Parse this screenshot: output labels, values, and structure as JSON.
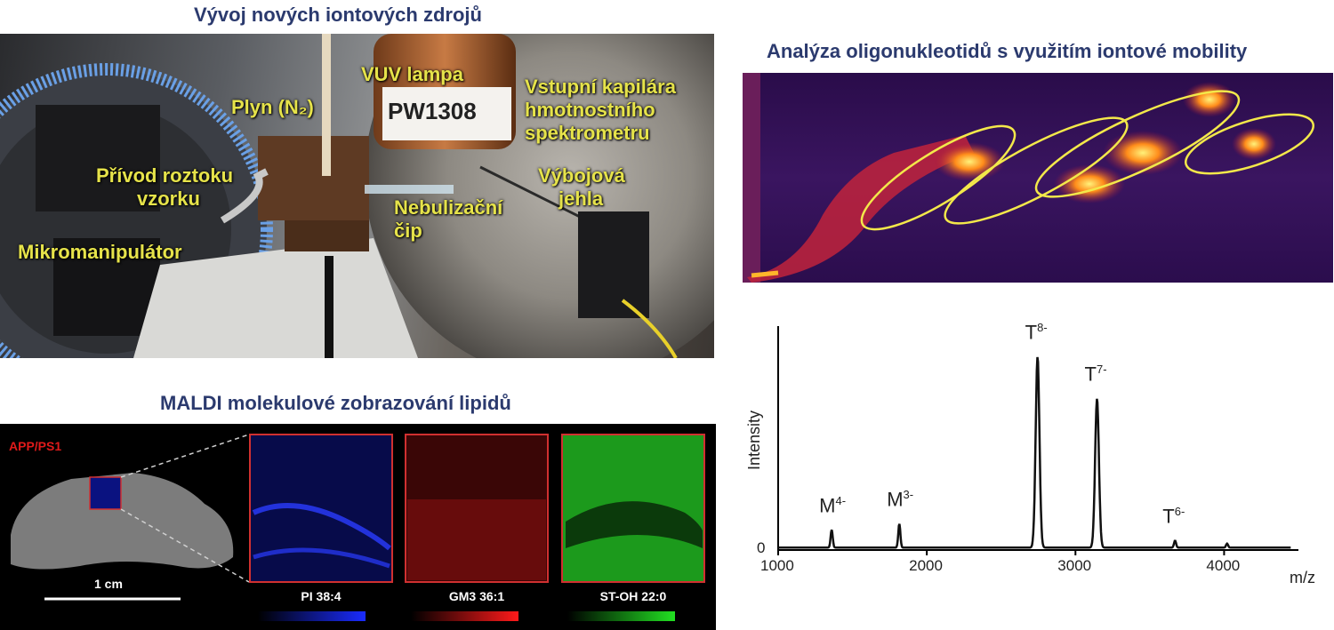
{
  "titles": {
    "ion_sources": "Vývoj nových iontových zdrojů",
    "ion_mobility": "Analýza oligonukleotidů s využitím iontové mobility",
    "maldi": "MALDI molekulové zobrazování lipidů"
  },
  "photo_labels": {
    "vuv_lamp": "VUV lampa",
    "lamp_tag": "PW1308",
    "gas": "Plyn (N₂)",
    "capillary_1": "Vstupní kapilára",
    "capillary_2": "hmotnostního",
    "capillary_3": "spektrometru",
    "sample_1": "Přívod roztoku",
    "sample_2": "vzorku",
    "nebul_1": "Nebulizační",
    "nebul_2": "čip",
    "needle_1": "Výbojová",
    "needle_2": "jehla",
    "micromanipulator": "Mikromanipulátor"
  },
  "maldi": {
    "sample_label": "APP/PS1",
    "scale_label": "1 cm",
    "panels": [
      {
        "label": "PI 38:4",
        "color": "#1a2cff"
      },
      {
        "label": "GM3 36:1",
        "color": "#ff1a1a"
      },
      {
        "label": "ST-OH 22:0",
        "color": "#22e022"
      }
    ]
  },
  "chart_data": {
    "type": "line",
    "title": "",
    "xlabel": "m/z",
    "ylabel": "Intensity",
    "xlim": [
      1000,
      4500
    ],
    "ylim": [
      0,
      1
    ],
    "x_ticks": [
      1000,
      2000,
      3000,
      4000
    ],
    "y_ticks": [
      0
    ],
    "peaks": [
      {
        "label": "M",
        "charge": "4-",
        "mz": 1360,
        "height": 0.09
      },
      {
        "label": "M",
        "charge": "3-",
        "mz": 1815,
        "height": 0.12
      },
      {
        "label": "T",
        "charge": "8-",
        "mz": 2745,
        "height": 0.96
      },
      {
        "label": "T",
        "charge": "7-",
        "mz": 3145,
        "height": 0.75
      },
      {
        "label": "T",
        "charge": "6-",
        "mz": 3670,
        "height": 0.035
      },
      {
        "label": "",
        "charge": "",
        "mz": 4020,
        "height": 0.02
      }
    ]
  }
}
